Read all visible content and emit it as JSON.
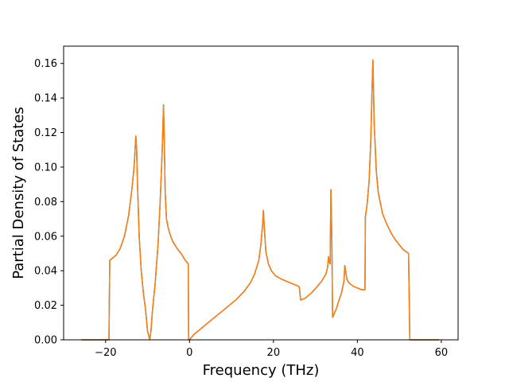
{
  "chart_data": {
    "type": "line",
    "title": "",
    "xlabel": "Frequency (THz)",
    "ylabel": "Partial Density of States",
    "xlim": [
      -30,
      64
    ],
    "ylim": [
      0,
      0.17
    ],
    "grid": false,
    "legend": "none",
    "x_ticks": [
      -20,
      0,
      20,
      40,
      60
    ],
    "x_tick_labels": [
      "−20",
      "0",
      "20",
      "40",
      "60"
    ],
    "y_ticks": [
      0.0,
      0.02,
      0.04,
      0.06,
      0.08,
      0.1,
      0.12,
      0.14,
      0.16
    ],
    "y_tick_labels": [
      "0.00",
      "0.02",
      "0.04",
      "0.06",
      "0.08",
      "0.10",
      "0.12",
      "0.14",
      "0.16"
    ],
    "series": [
      {
        "color": "#ff7f0e",
        "underlay_color": "#1f77b4",
        "x": [
          -25.8,
          -19.2,
          -19.0,
          -18.5,
          -17.5,
          -16.5,
          -15.5,
          -14.5,
          -13.7,
          -13.2,
          -12.8,
          -12.6,
          -12.4,
          -12.0,
          -11.5,
          -11.0,
          -10.5,
          -10.0,
          -9.5,
          -9.2,
          -8.8,
          -8.2,
          -7.5,
          -7.0,
          -6.5,
          -6.2,
          -6.0,
          -5.8,
          -5.5,
          -5.0,
          -4.5,
          -4.0,
          -3.0,
          -2.0,
          -1.0,
          -0.3,
          -0.2,
          0.0,
          1.0,
          3.0,
          5.0,
          7.0,
          9.0,
          11.0,
          13.0,
          14.5,
          15.5,
          16.5,
          17.0,
          17.4,
          17.6,
          17.8,
          18.2,
          18.8,
          19.5,
          20.5,
          22.0,
          24.0,
          26.0,
          26.2,
          26.5,
          27.5,
          29.0,
          30.5,
          31.5,
          32.5,
          32.9,
          33.1,
          33.3,
          33.5,
          33.7,
          33.9,
          34.1,
          34.3,
          34.6,
          35.0,
          35.5,
          36.2,
          36.8,
          37.0,
          37.2,
          37.5,
          38.0,
          39.0,
          40.0,
          41.0,
          41.8,
          41.9,
          42.3,
          42.8,
          43.2,
          43.5,
          43.7,
          44.0,
          44.5,
          45.0,
          46.0,
          47.0,
          48.0,
          49.0,
          50.0,
          51.0,
          52.2,
          52.5,
          55.0,
          59.5
        ],
        "y": [
          0.0,
          0.0,
          0.046,
          0.047,
          0.049,
          0.053,
          0.06,
          0.072,
          0.088,
          0.1,
          0.118,
          0.11,
          0.09,
          0.06,
          0.04,
          0.027,
          0.018,
          0.005,
          0.0,
          0.005,
          0.018,
          0.032,
          0.055,
          0.08,
          0.11,
          0.136,
          0.115,
          0.085,
          0.07,
          0.064,
          0.06,
          0.057,
          0.053,
          0.05,
          0.046,
          0.044,
          0.0,
          0.0,
          0.003,
          0.007,
          0.011,
          0.015,
          0.019,
          0.023,
          0.028,
          0.033,
          0.038,
          0.046,
          0.055,
          0.066,
          0.075,
          0.066,
          0.051,
          0.044,
          0.04,
          0.037,
          0.035,
          0.033,
          0.031,
          0.03,
          0.023,
          0.024,
          0.027,
          0.031,
          0.034,
          0.038,
          0.042,
          0.048,
          0.045,
          0.044,
          0.087,
          0.06,
          0.013,
          0.014,
          0.016,
          0.018,
          0.022,
          0.027,
          0.034,
          0.043,
          0.04,
          0.035,
          0.033,
          0.031,
          0.03,
          0.029,
          0.029,
          0.071,
          0.078,
          0.092,
          0.115,
          0.145,
          0.162,
          0.125,
          0.098,
          0.085,
          0.073,
          0.067,
          0.062,
          0.058,
          0.055,
          0.052,
          0.05,
          0.0,
          0.0,
          0.0
        ]
      }
    ]
  }
}
